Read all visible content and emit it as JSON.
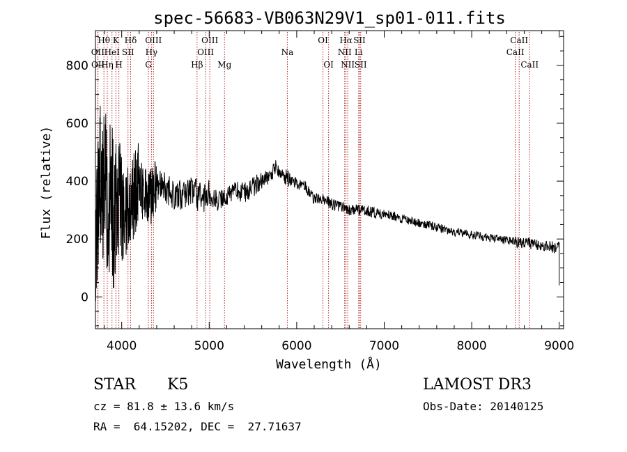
{
  "chart_data": {
    "type": "line",
    "title": "spec-56683-VB063N29V1_sp01-011.fits",
    "xlabel": "Wavelength (Å)",
    "ylabel": "Flux (relative)",
    "xlim": [
      3700,
      9050
    ],
    "ylim": [
      -110,
      920
    ],
    "xticks": [
      4000,
      5000,
      6000,
      7000,
      8000,
      9000
    ],
    "xtick_labels": [
      "4000",
      "5000",
      "6000",
      "7000",
      "8000",
      "9000"
    ],
    "yticks": [
      0,
      200,
      400,
      600,
      800
    ],
    "ytick_labels": [
      "0",
      "200",
      "400",
      "600",
      "800"
    ],
    "spectrum_envelope": {
      "x": [
        3700,
        3750,
        3800,
        3850,
        3900,
        3950,
        4000,
        4100,
        4200,
        4300,
        4400,
        4500,
        4600,
        4700,
        4800,
        4900,
        5000,
        5100,
        5200,
        5300,
        5400,
        5500,
        5600,
        5700,
        5750,
        5800,
        5850,
        5900,
        5950,
        6000,
        6100,
        6200,
        6300,
        6400,
        6500,
        6600,
        6700,
        6800,
        6900,
        7000,
        7200,
        7400,
        7600,
        7800,
        8000,
        8200,
        8400,
        8600,
        8800,
        8950,
        9000
      ],
      "y": [
        250,
        420,
        380,
        330,
        300,
        280,
        270,
        320,
        390,
        330,
        380,
        380,
        340,
        360,
        370,
        340,
        350,
        330,
        350,
        370,
        360,
        380,
        400,
        420,
        450,
        440,
        420,
        410,
        400,
        390,
        380,
        340,
        340,
        320,
        310,
        300,
        300,
        300,
        290,
        290,
        270,
        255,
        240,
        225,
        215,
        205,
        195,
        185,
        180,
        170,
        190
      ]
    },
    "spectral_lines": [
      {
        "label": "Hθ",
        "x": 3797,
        "row": 0
      },
      {
        "label": "OII",
        "x": 3727,
        "row": 1
      },
      {
        "label": "OII",
        "x": 3729,
        "row": 2
      },
      {
        "label": "Hη",
        "x": 3835,
        "row": 2
      },
      {
        "label": "HeI",
        "x": 3889,
        "row": 1
      },
      {
        "label": "K",
        "x": 3934,
        "row": 0
      },
      {
        "label": "SII",
        "x": 4072,
        "row": 1
      },
      {
        "label": "H",
        "x": 3968,
        "row": 2
      },
      {
        "label": "Hδ",
        "x": 4102,
        "row": 0
      },
      {
        "label": "OIII",
        "x": 4363,
        "row": 0
      },
      {
        "label": "Hγ",
        "x": 4340,
        "row": 1
      },
      {
        "label": "G",
        "x": 4305,
        "row": 2
      },
      {
        "label": "Hβ",
        "x": 4861,
        "row": 2
      },
      {
        "label": "OIII",
        "x": 5007,
        "row": 0
      },
      {
        "label": "OIII",
        "x": 4959,
        "row": 1
      },
      {
        "label": "Mg",
        "x": 5175,
        "row": 2
      },
      {
        "label": "Na",
        "x": 5893,
        "row": 1
      },
      {
        "label": "OI",
        "x": 6300,
        "row": 0
      },
      {
        "label": "OI",
        "x": 6364,
        "row": 2
      },
      {
        "label": "Hα",
        "x": 6563,
        "row": 0
      },
      {
        "label": "NII",
        "x": 6548,
        "row": 1
      },
      {
        "label": "NII",
        "x": 6583,
        "row": 2
      },
      {
        "label": "SII",
        "x": 6717,
        "row": 0
      },
      {
        "label": "Li",
        "x": 6708,
        "row": 1
      },
      {
        "label": "SII",
        "x": 6731,
        "row": 2
      },
      {
        "label": "CaII",
        "x": 8542,
        "row": 0
      },
      {
        "label": "CaII",
        "x": 8498,
        "row": 1
      },
      {
        "label": "CaII",
        "x": 8662,
        "row": 2
      }
    ],
    "line_color": "#000000",
    "marker_color": "#b22222"
  },
  "info": {
    "object_class": "STAR",
    "subclass": "K5",
    "survey": "LAMOST DR3",
    "cz": "cz = 81.8 ± 13.6 km/s",
    "obs_date": "Obs-Date: 20140125",
    "coords": "RA =  64.15202, DEC =  27.71637"
  }
}
